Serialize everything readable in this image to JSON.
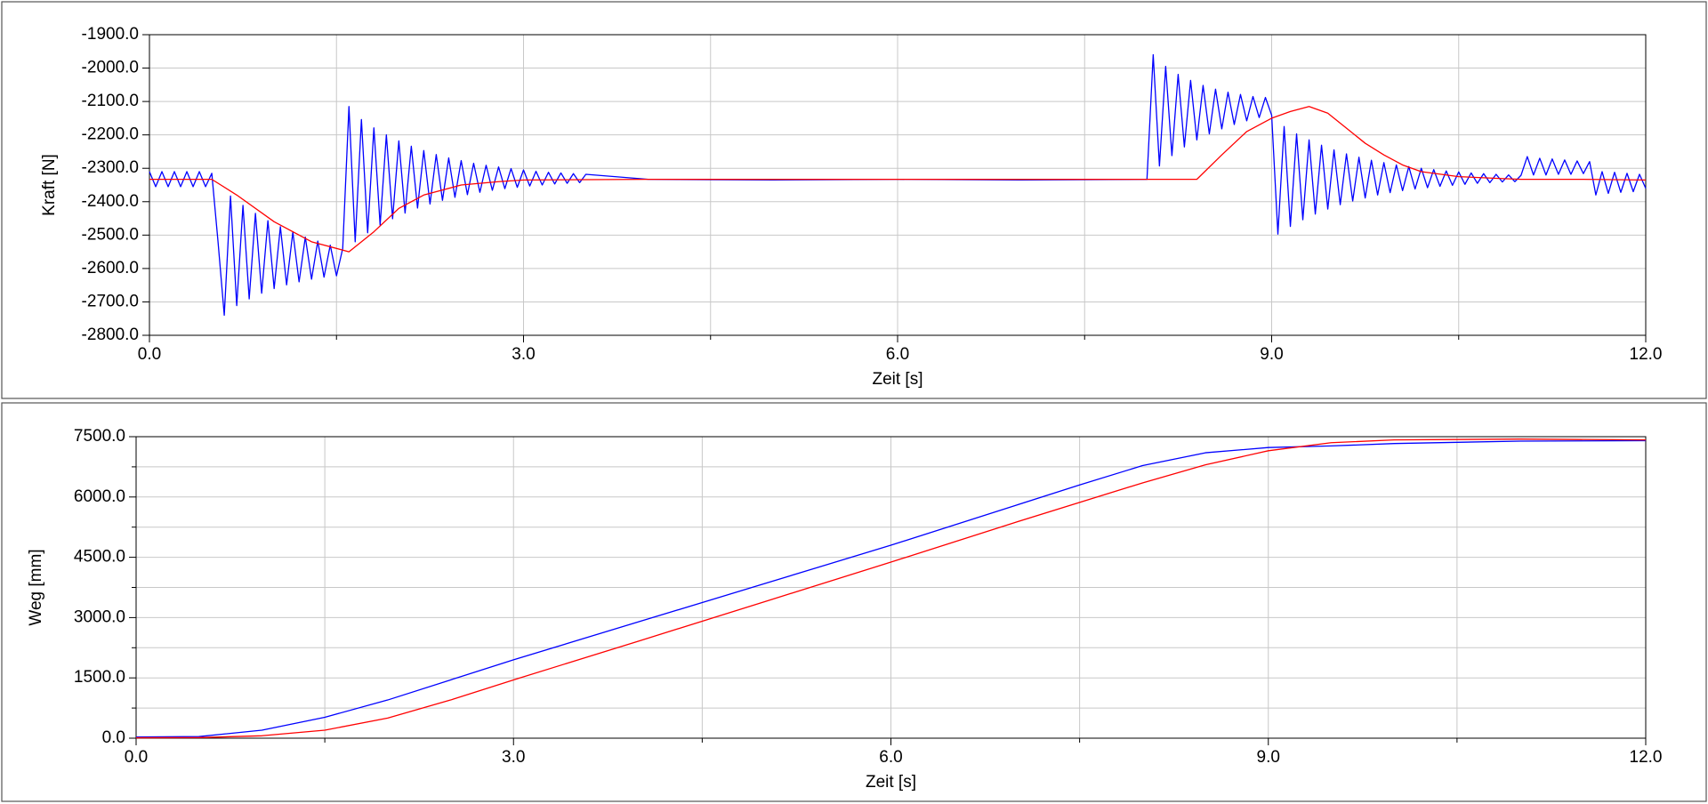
{
  "chart_data": [
    {
      "type": "line",
      "ylabel": "Kraft [N]",
      "xlabel": "Zeit [s]",
      "grid": true,
      "xlim": [
        0,
        12
      ],
      "xticks": [
        {
          "value": 0,
          "label": "0.0"
        },
        {
          "value": 3,
          "label": "3.0"
        },
        {
          "value": 6,
          "label": "6.0"
        },
        {
          "value": 9,
          "label": "9.0"
        },
        {
          "value": 12,
          "label": "12.0"
        }
      ],
      "xminorticks": [
        1.5,
        4.5,
        7.5,
        10.5
      ],
      "ylim": [
        -2800,
        -1900
      ],
      "yticks": [
        {
          "value": -2800,
          "label": "-2800.0"
        },
        {
          "value": -2700,
          "label": "-2700.0"
        },
        {
          "value": -2600,
          "label": "-2600.0"
        },
        {
          "value": -2500,
          "label": "-2500.0"
        },
        {
          "value": -2400,
          "label": "-2400.0"
        },
        {
          "value": -2300,
          "label": "-2300.0"
        },
        {
          "value": -2200,
          "label": "-2200.0"
        },
        {
          "value": -2100,
          "label": "-2100.0"
        },
        {
          "value": -2000,
          "label": "-2000.0"
        },
        {
          "value": -1900,
          "label": "-1900.0"
        }
      ],
      "series": [
        {
          "color": "#0000ff",
          "x": [
            0,
            0.05,
            0.1,
            0.15,
            0.2,
            0.25,
            0.3,
            0.35,
            0.4,
            0.45,
            0.5,
            0.55,
            0.6,
            0.65,
            0.7,
            0.75,
            0.8,
            0.85,
            0.9,
            0.95,
            1,
            1.05,
            1.1,
            1.15,
            1.2,
            1.25,
            1.3,
            1.35,
            1.4,
            1.45,
            1.5,
            1.55,
            1.6,
            1.65,
            1.7,
            1.75,
            1.8,
            1.85,
            1.9,
            1.95,
            2,
            2.05,
            2.1,
            2.15,
            2.2,
            2.25,
            2.3,
            2.35,
            2.4,
            2.45,
            2.5,
            2.55,
            2.6,
            2.65,
            2.7,
            2.75,
            2.8,
            2.85,
            2.9,
            2.95,
            3,
            3.05,
            3.1,
            3.15,
            3.2,
            3.25,
            3.3,
            3.35,
            3.4,
            3.45,
            3.5,
            4,
            5,
            6,
            7,
            8,
            8.05,
            8.1,
            8.15,
            8.2,
            8.25,
            8.3,
            8.35,
            8.4,
            8.45,
            8.5,
            8.55,
            8.6,
            8.65,
            8.7,
            8.75,
            8.8,
            8.85,
            8.9,
            8.95,
            9,
            9.05,
            9.1,
            9.15,
            9.2,
            9.25,
            9.3,
            9.35,
            9.4,
            9.45,
            9.5,
            9.55,
            9.6,
            9.65,
            9.7,
            9.75,
            9.8,
            9.85,
            9.9,
            9.95,
            10,
            10.05,
            10.1,
            10.15,
            10.2,
            10.25,
            10.3,
            10.35,
            10.4,
            10.45,
            10.5,
            10.55,
            10.6,
            10.65,
            10.7,
            10.75,
            10.8,
            10.85,
            10.9,
            10.95,
            11,
            11.05,
            11.1,
            11.15,
            11.2,
            11.25,
            11.3,
            11.35,
            11.4,
            11.45,
            11.5,
            11.55,
            11.6,
            11.65,
            11.7,
            11.75,
            11.8,
            11.85,
            11.9,
            11.95,
            12
          ],
          "values": [
            -2310,
            -2355,
            -2310,
            -2355,
            -2310,
            -2355,
            -2310,
            -2355,
            -2310,
            -2355,
            -2315,
            -2520,
            -2740,
            -2383,
            -2711,
            -2411,
            -2691,
            -2435,
            -2674,
            -2457,
            -2660,
            -2475,
            -2649,
            -2491,
            -2640,
            -2506,
            -2632,
            -2518,
            -2626,
            -2530,
            -2622,
            -2540,
            -2115,
            -2520,
            -2154,
            -2493,
            -2179,
            -2470,
            -2200,
            -2451,
            -2218,
            -2434,
            -2234,
            -2419,
            -2247,
            -2407,
            -2259,
            -2396,
            -2269,
            -2387,
            -2277,
            -2379,
            -2285,
            -2372,
            -2291,
            -2366,
            -2296,
            -2361,
            -2301,
            -2357,
            -2305,
            -2353,
            -2309,
            -2350,
            -2312,
            -2347,
            -2314,
            -2345,
            -2316,
            -2343,
            -2318,
            -2333,
            -2335,
            -2333,
            -2335,
            -2333,
            -1960,
            -2293,
            -1995,
            -2262,
            -2019,
            -2236,
            -2037,
            -2215,
            -2052,
            -2197,
            -2063,
            -2182,
            -2072,
            -2169,
            -2079,
            -2158,
            -2085,
            -2148,
            -2088,
            -2141,
            -2497,
            -2175,
            -2474,
            -2197,
            -2454,
            -2215,
            -2437,
            -2231,
            -2422,
            -2245,
            -2409,
            -2257,
            -2398,
            -2267,
            -2389,
            -2276,
            -2380,
            -2283,
            -2373,
            -2290,
            -2367,
            -2295,
            -2362,
            -2300,
            -2358,
            -2304,
            -2354,
            -2308,
            -2351,
            -2311,
            -2348,
            -2314,
            -2345,
            -2316,
            -2343,
            -2318,
            -2341,
            -2320,
            -2340,
            -2321,
            -2265,
            -2320,
            -2270,
            -2320,
            -2272,
            -2318,
            -2275,
            -2318,
            -2278,
            -2316,
            -2280,
            -2380,
            -2310,
            -2375,
            -2312,
            -2372,
            -2315,
            -2370,
            -2318,
            -2360
          ]
        },
        {
          "color": "#ff0000",
          "x": [
            0,
            0.5,
            0.7,
            1,
            1.3,
            1.6,
            1.8,
            2,
            2.2,
            2.5,
            2.8,
            3,
            4,
            5,
            6,
            7,
            8,
            8.4,
            8.6,
            8.8,
            9,
            9.15,
            9.3,
            9.45,
            9.6,
            9.75,
            9.9,
            10.05,
            10.2,
            10.5,
            10.8,
            11,
            11.5,
            12
          ],
          "values": [
            -2333,
            -2333,
            -2380,
            -2460,
            -2520,
            -2550,
            -2490,
            -2420,
            -2380,
            -2350,
            -2340,
            -2335,
            -2333,
            -2333,
            -2333,
            -2333,
            -2333,
            -2333,
            -2260,
            -2190,
            -2150,
            -2130,
            -2115,
            -2135,
            -2180,
            -2225,
            -2260,
            -2290,
            -2310,
            -2325,
            -2330,
            -2333,
            -2333,
            -2335
          ]
        }
      ]
    },
    {
      "type": "line",
      "ylabel": "Weg [mm]",
      "xlabel": "Zeit [s]",
      "grid": true,
      "xlim": [
        0,
        12
      ],
      "xticks": [
        {
          "value": 0,
          "label": "0.0"
        },
        {
          "value": 3,
          "label": "3.0"
        },
        {
          "value": 6,
          "label": "6.0"
        },
        {
          "value": 9,
          "label": "9.0"
        },
        {
          "value": 12,
          "label": "12.0"
        }
      ],
      "xminorticks": [
        1.5,
        4.5,
        7.5,
        10.5
      ],
      "ylim": [
        0,
        7500
      ],
      "yticks": [
        {
          "value": 0,
          "label": "0.0"
        },
        {
          "value": 1500,
          "label": "1500.0"
        },
        {
          "value": 3000,
          "label": "3000.0"
        },
        {
          "value": 4500,
          "label": "4500.0"
        },
        {
          "value": 6000,
          "label": "6000.0"
        },
        {
          "value": 7500,
          "label": "7500.0"
        }
      ],
      "yminorticks": [
        750,
        2250,
        3750,
        5250,
        6750
      ],
      "series": [
        {
          "color": "#0000ff",
          "x": [
            0,
            0.5,
            1,
            1.5,
            2,
            2.5,
            3,
            4,
            5,
            6,
            7,
            7.5,
            8,
            8.5,
            9,
            9.5,
            10,
            11,
            12
          ],
          "values": [
            30,
            40,
            200,
            520,
            950,
            1450,
            1950,
            2900,
            3850,
            4800,
            5800,
            6300,
            6780,
            7100,
            7230,
            7270,
            7330,
            7390,
            7400
          ]
        },
        {
          "color": "#ff0000",
          "x": [
            0,
            0.5,
            1,
            1.5,
            2,
            2.5,
            3,
            4,
            5,
            6,
            7,
            8,
            8.5,
            9,
            9.5,
            10,
            11,
            12
          ],
          "values": [
            10,
            15,
            60,
            200,
            500,
            950,
            1450,
            2420,
            3400,
            4380,
            5380,
            6350,
            6800,
            7150,
            7350,
            7420,
            7440,
            7420
          ]
        }
      ]
    }
  ]
}
